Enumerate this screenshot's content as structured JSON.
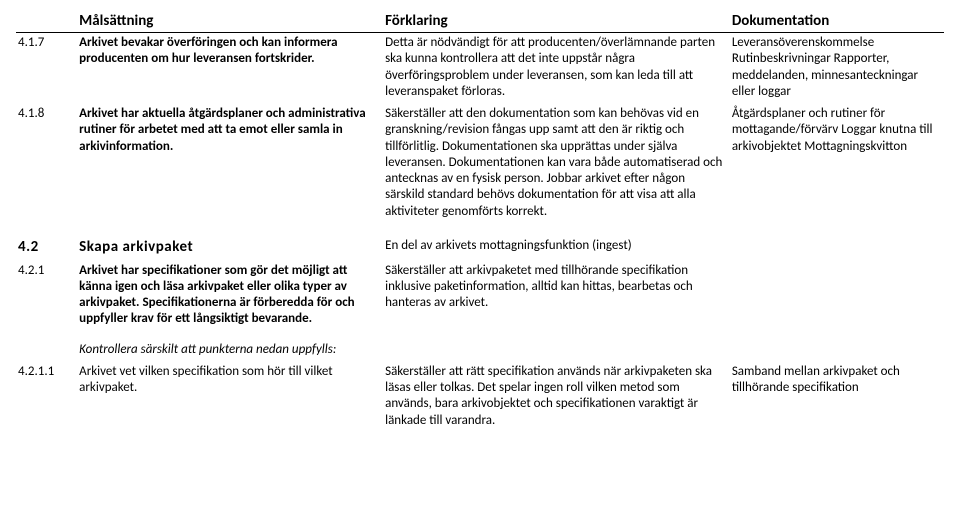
{
  "header": {
    "col1": "",
    "col2": "Målsättning",
    "col3": "Förklaring",
    "col4": "Dokumentation"
  },
  "rows": [
    {
      "id": "4.1.7",
      "goal": "Arkivet bevakar överföringen och kan informera producenten om hur leveransen fortskrider.",
      "explain": "Detta är nödvändigt för att producenten/överlämnande parten ska kunna kontrollera att det inte uppstår några överföringsproblem under leveransen, som kan leda till att leveranspaket förloras.",
      "doc": "Leveransöverenskommelse Rutinbeskrivningar Rapporter, meddelanden, minnesanteckningar eller loggar"
    },
    {
      "id": "4.1.8",
      "goal": "Arkivet har aktuella åtgärdsplaner och administrativa rutiner för arbetet med att ta emot eller samla in arkivinformation.",
      "explain": "Säkerställer att den dokumentation som kan behövas vid en granskning/revision fångas upp samt att den är riktig och tillförlitlig. Dokumentationen ska upprättas under själva leveransen. Dokumentationen kan vara både automatiserad och antecknas av en fysisk person. Jobbar arkivet efter någon särskild standard behövs dokumentation för att visa att alla aktiviteter genomförts korrekt.",
      "doc": "Åtgärdsplaner och rutiner för mottagande/förvärv Loggar knutna till arkivobjektet Mottagningskvitton"
    }
  ],
  "section": {
    "id": "4.2",
    "title": "Skapa arkivpaket",
    "explain": "En del av arkivets mottagningsfunktion (ingest)"
  },
  "rows2": [
    {
      "id": "4.2.1",
      "goal": "Arkivet har specifikationer som gör det möjligt att känna igen och läsa arkivpaket eller olika typer av arkivpaket. Specifikationerna är förberedda för och uppfyller krav för ett långsiktigt bevarande.",
      "explain": "Säkerställer att arkivpaketet med tillhörande specifikation inklusive paketinformation, alltid kan hittas, bearbetas och hanteras av arkivet.",
      "doc": ""
    }
  ],
  "subhead": "Kontrollera särskilt att punkterna nedan uppfylls:",
  "rows3": [
    {
      "id": "4.2.1.1",
      "goal": "Arkivet vet vilken specifikation som hör till vilket arkivpaket.",
      "explain": "Säkerställer att rätt specifikation används när arkivpaketen ska läsas eller tolkas. Det spelar ingen roll vilken metod som används, bara arkivobjektet och specifikationen varaktigt är länkade till varandra.",
      "doc": "Samband mellan arkivpaket och tillhörande specifikation"
    }
  ]
}
